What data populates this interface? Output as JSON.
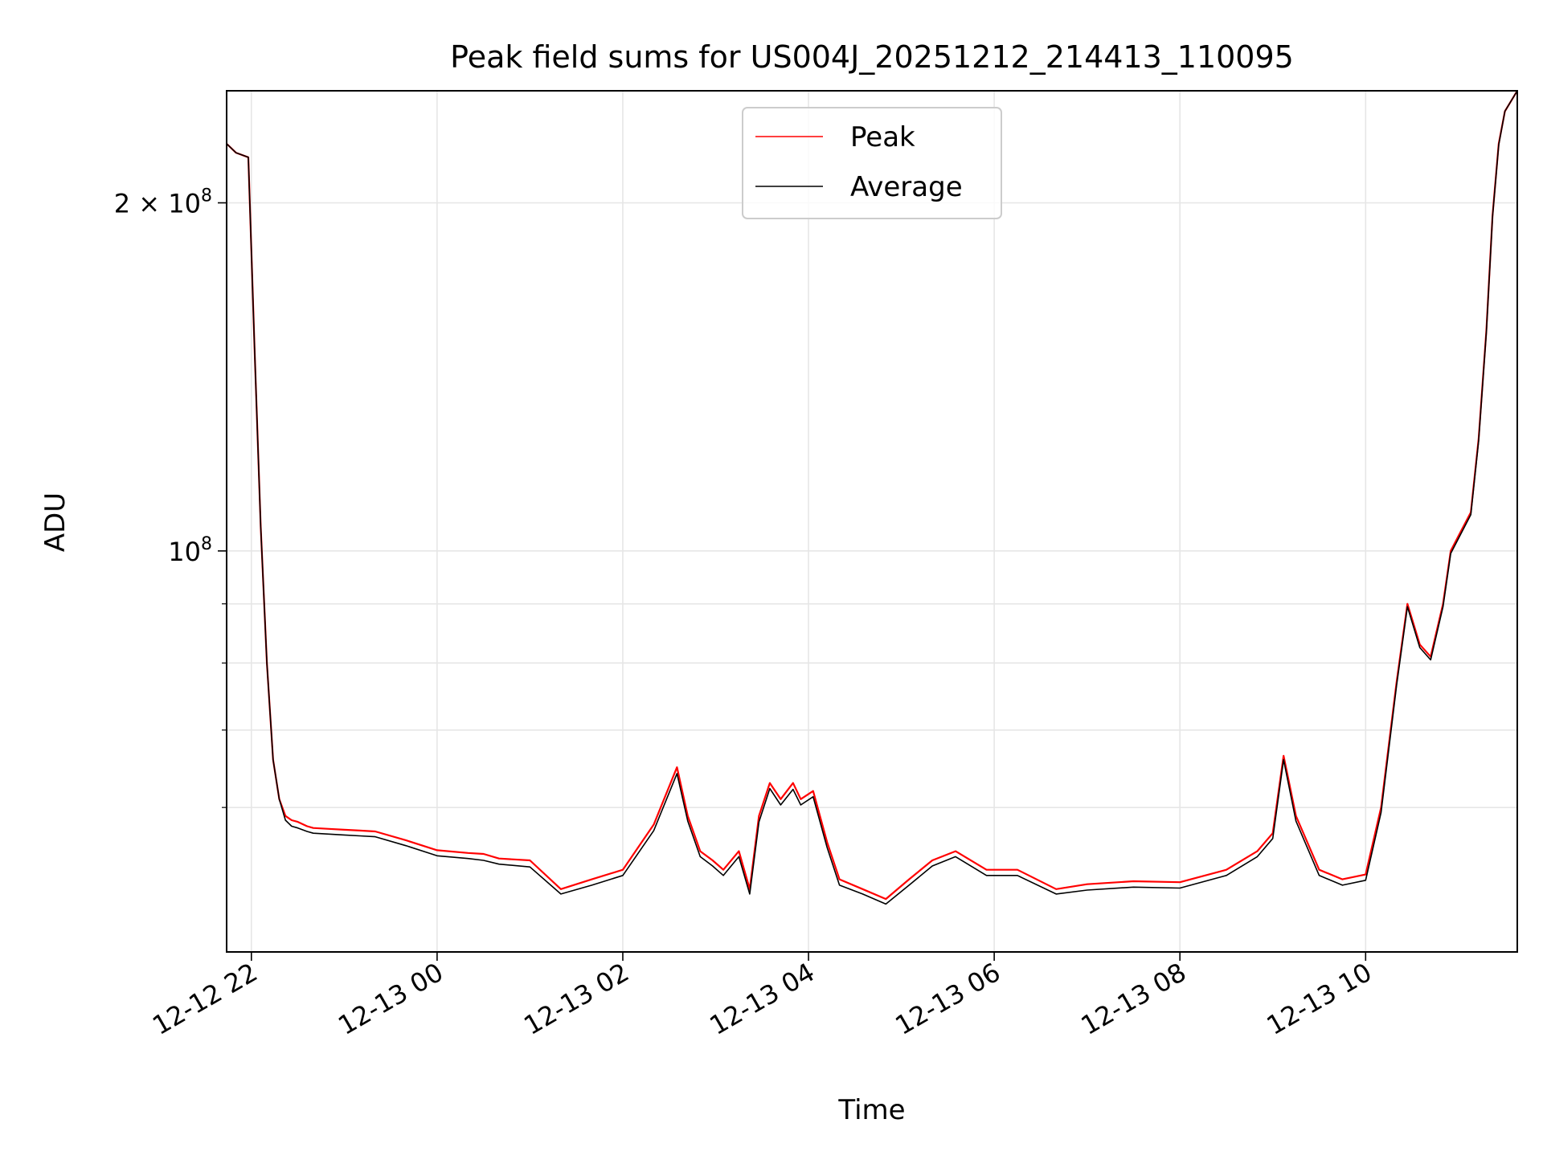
{
  "chart_data": {
    "type": "line",
    "title": "Peak field sums for US004J_20251212_214413_110095",
    "xlabel": "Time",
    "ylabel": "ADU",
    "yscale": "log",
    "xlim": [
      "2025-12-12 21:44",
      "2025-12-13 11:38"
    ],
    "ylim": [
      45000000,
      250000000
    ],
    "grid": true,
    "legend_position": "upper center",
    "colors": {
      "peak": "#ff0000",
      "average": "#000000",
      "grid": "#e6e6e6"
    },
    "x_ticks": [
      {
        "value": "2025-12-12 22:00",
        "label": "12-12 22"
      },
      {
        "value": "2025-12-13 00:00",
        "label": "12-13 00"
      },
      {
        "value": "2025-12-13 02:00",
        "label": "12-13 02"
      },
      {
        "value": "2025-12-13 04:00",
        "label": "12-13 04"
      },
      {
        "value": "2025-12-13 06:00",
        "label": "12-13 06"
      },
      {
        "value": "2025-12-13 08:00",
        "label": "12-13 08"
      },
      {
        "value": "2025-12-13 10:00",
        "label": "12-13 10"
      }
    ],
    "y_major_ticks": [
      {
        "value": 100000000,
        "base": "10",
        "exp": "8"
      },
      {
        "value": 200000000,
        "base": "2 × 10",
        "exp": "8"
      }
    ],
    "y_minor_ticks": [
      60000000,
      70000000,
      80000000,
      90000000
    ],
    "series": [
      {
        "name": "Peak",
        "x": [
          "2025-12-12 21:44",
          "2025-12-12 21:50",
          "2025-12-12 21:58",
          "2025-12-12 22:02",
          "2025-12-12 22:06",
          "2025-12-12 22:10",
          "2025-12-12 22:14",
          "2025-12-12 22:18",
          "2025-12-12 22:22",
          "2025-12-12 22:26",
          "2025-12-12 22:30",
          "2025-12-12 22:36",
          "2025-12-12 22:40",
          "2025-12-12 22:50",
          "2025-12-12 23:00",
          "2025-12-12 23:10",
          "2025-12-12 23:20",
          "2025-12-12 23:40",
          "2025-12-13 00:00",
          "2025-12-13 00:20",
          "2025-12-13 00:30",
          "2025-12-13 00:40",
          "2025-12-13 01:00",
          "2025-12-13 01:20",
          "2025-12-13 01:40",
          "2025-12-13 02:00",
          "2025-12-13 02:20",
          "2025-12-13 02:35",
          "2025-12-13 02:42",
          "2025-12-13 02:50",
          "2025-12-13 02:58",
          "2025-12-13 03:05",
          "2025-12-13 03:15",
          "2025-12-13 03:22",
          "2025-12-13 03:28",
          "2025-12-13 03:35",
          "2025-12-13 03:42",
          "2025-12-13 03:50",
          "2025-12-13 03:55",
          "2025-12-13 04:03",
          "2025-12-13 04:12",
          "2025-12-13 04:20",
          "2025-12-13 04:35",
          "2025-12-13 04:50",
          "2025-12-13 05:05",
          "2025-12-13 05:20",
          "2025-12-13 05:35",
          "2025-12-13 05:55",
          "2025-12-13 06:15",
          "2025-12-13 06:40",
          "2025-12-13 07:00",
          "2025-12-13 07:30",
          "2025-12-13 08:00",
          "2025-12-13 08:30",
          "2025-12-13 08:50",
          "2025-12-13 09:00",
          "2025-12-13 09:07",
          "2025-12-13 09:15",
          "2025-12-13 09:30",
          "2025-12-13 09:45",
          "2025-12-13 10:00",
          "2025-12-13 10:10",
          "2025-12-13 10:20",
          "2025-12-13 10:27",
          "2025-12-13 10:35",
          "2025-12-13 10:42",
          "2025-12-13 10:50",
          "2025-12-13 10:55",
          "2025-12-13 11:00",
          "2025-12-13 11:08",
          "2025-12-13 11:13",
          "2025-12-13 11:18",
          "2025-12-13 11:22",
          "2025-12-13 11:26",
          "2025-12-13 11:30",
          "2025-12-13 11:38"
        ],
        "y": [
          225000000,
          221000000,
          219000000,
          150000000,
          105000000,
          80000000,
          66000000,
          61000000,
          59000000,
          58500000,
          58300000,
          57800000,
          57600000,
          57500000,
          57400000,
          57300000,
          57200000,
          56200000,
          55100000,
          54800000,
          54700000,
          54200000,
          54000000,
          51000000,
          52000000,
          53000000,
          58000000,
          65000000,
          59000000,
          55000000,
          54000000,
          53000000,
          55000000,
          51000000,
          59000000,
          63000000,
          61000000,
          63000000,
          61000000,
          62000000,
          56000000,
          52000000,
          51000000,
          50000000,
          52000000,
          54000000,
          55000000,
          53000000,
          53000000,
          51000000,
          51500000,
          51800000,
          51700000,
          53000000,
          55000000,
          57000000,
          66500000,
          59000000,
          53000000,
          52000000,
          52500000,
          60000000,
          77000000,
          90000000,
          83000000,
          81000000,
          90000000,
          100000000,
          103000000,
          108000000,
          125000000,
          155000000,
          195000000,
          225000000,
          240000000,
          250000000
        ]
      },
      {
        "name": "Average",
        "x": [
          "2025-12-12 21:44",
          "2025-12-12 21:50",
          "2025-12-12 21:58",
          "2025-12-12 22:02",
          "2025-12-12 22:06",
          "2025-12-12 22:10",
          "2025-12-12 22:14",
          "2025-12-12 22:18",
          "2025-12-12 22:22",
          "2025-12-12 22:26",
          "2025-12-12 22:30",
          "2025-12-12 22:36",
          "2025-12-12 22:40",
          "2025-12-12 22:50",
          "2025-12-12 23:00",
          "2025-12-12 23:10",
          "2025-12-12 23:20",
          "2025-12-12 23:40",
          "2025-12-13 00:00",
          "2025-12-13 00:20",
          "2025-12-13 00:30",
          "2025-12-13 00:40",
          "2025-12-13 01:00",
          "2025-12-13 01:20",
          "2025-12-13 01:40",
          "2025-12-13 02:00",
          "2025-12-13 02:20",
          "2025-12-13 02:35",
          "2025-12-13 02:42",
          "2025-12-13 02:50",
          "2025-12-13 02:58",
          "2025-12-13 03:05",
          "2025-12-13 03:15",
          "2025-12-13 03:22",
          "2025-12-13 03:28",
          "2025-12-13 03:35",
          "2025-12-13 03:42",
          "2025-12-13 03:50",
          "2025-12-13 03:55",
          "2025-12-13 04:03",
          "2025-12-13 04:12",
          "2025-12-13 04:20",
          "2025-12-13 04:35",
          "2025-12-13 04:50",
          "2025-12-13 05:05",
          "2025-12-13 05:20",
          "2025-12-13 05:35",
          "2025-12-13 05:55",
          "2025-12-13 06:15",
          "2025-12-13 06:40",
          "2025-12-13 07:00",
          "2025-12-13 07:30",
          "2025-12-13 08:00",
          "2025-12-13 08:30",
          "2025-12-13 08:50",
          "2025-12-13 09:00",
          "2025-12-13 09:07",
          "2025-12-13 09:15",
          "2025-12-13 09:30",
          "2025-12-13 09:45",
          "2025-12-13 10:00",
          "2025-12-13 10:10",
          "2025-12-13 10:20",
          "2025-12-13 10:27",
          "2025-12-13 10:35",
          "2025-12-13 10:42",
          "2025-12-13 10:50",
          "2025-12-13 10:55",
          "2025-12-13 11:00",
          "2025-12-13 11:08",
          "2025-12-13 11:13",
          "2025-12-13 11:18",
          "2025-12-13 11:22",
          "2025-12-13 11:26",
          "2025-12-13 11:30",
          "2025-12-13 11:38"
        ],
        "y": [
          225000000,
          221000000,
          219000000,
          150000000,
          105000000,
          80000000,
          66000000,
          61000000,
          58500000,
          57800000,
          57600000,
          57200000,
          57000000,
          56900000,
          56800000,
          56700000,
          56600000,
          55600000,
          54500000,
          54200000,
          54000000,
          53600000,
          53300000,
          50500000,
          51400000,
          52400000,
          57300000,
          64200000,
          58400000,
          54400000,
          53400000,
          52400000,
          54400000,
          50500000,
          58300000,
          62300000,
          60300000,
          62200000,
          60300000,
          61300000,
          55400000,
          51400000,
          50500000,
          49500000,
          51400000,
          53400000,
          54400000,
          52400000,
          52400000,
          50500000,
          50900000,
          51200000,
          51100000,
          52400000,
          54400000,
          56400000,
          66000000,
          58400000,
          52400000,
          51400000,
          51900000,
          59400000,
          76500000,
          89500000,
          82500000,
          80500000,
          89500000,
          99500000,
          102500000,
          107500000,
          124500000,
          154500000,
          194500000,
          224500000,
          240000000,
          250000000
        ]
      }
    ]
  }
}
